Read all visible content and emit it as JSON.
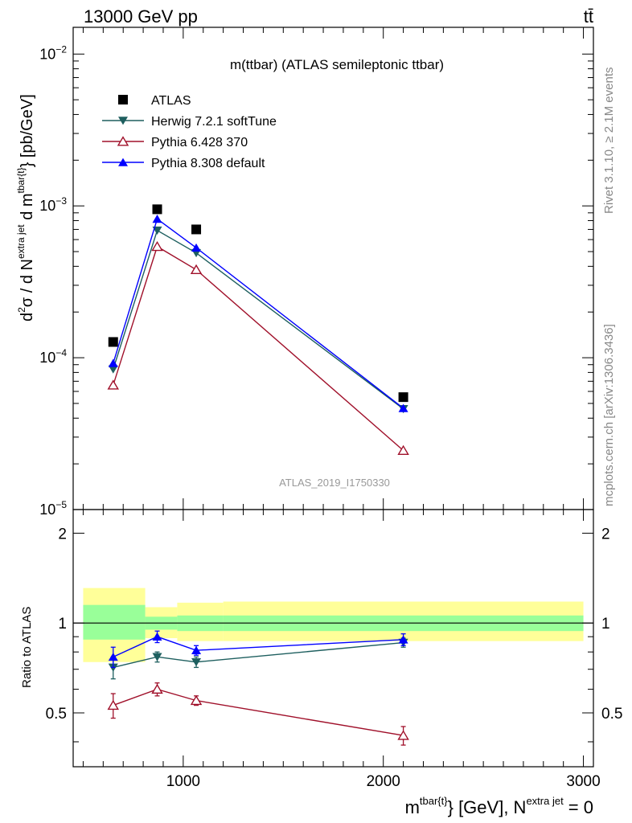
{
  "header": {
    "energy_label": "13000 GeV pp",
    "process_label": "tt̄"
  },
  "side_labels": {
    "rivet": "Rivet 3.1.10, ≥ 2.1M events",
    "mcplots": "mcplots.cern.ch [arXiv:1306.3436]"
  },
  "chart_data": [
    {
      "type": "scatter",
      "panel": "main",
      "title": "m(ttbar) (ATLAS semileptonic ttbar)",
      "watermark": "ATLAS_2019_I1750330",
      "ylabel": "d²σ / d N^{extra jet} d m^{tbar{t}} [pb/GeV]",
      "yscale": "log",
      "xlim": [
        450,
        3050
      ],
      "ylim": [
        1e-05,
        0.015
      ],
      "y_ticks": [
        {
          "value": 1e-05,
          "mantissa": "10",
          "exponent": "−5"
        },
        {
          "value": 0.0001,
          "mantissa": "10",
          "exponent": "−4"
        },
        {
          "value": 0.001,
          "mantissa": "10",
          "exponent": "−3"
        },
        {
          "value": 0.01,
          "mantissa": "10",
          "exponent": "−2"
        }
      ],
      "legend_position": "top-left",
      "series": [
        {
          "name": "ATLAS",
          "color": "#000000",
          "marker": "square",
          "line": false,
          "x": [
            650,
            870,
            1065,
            2100
          ],
          "y": [
            0.000127,
            0.00095,
            0.0007,
            5.5e-05
          ]
        },
        {
          "name": "Herwig 7.2.1 softTune",
          "color": "#1e5f5f",
          "marker": "triangle-down",
          "line": true,
          "x": [
            650,
            870,
            1065,
            2100
          ],
          "y": [
            8.4e-05,
            0.00069,
            0.00049,
            4.6e-05
          ]
        },
        {
          "name": "Pythia 6.428 370",
          "color": "#a0102a",
          "marker": "triangle-up-open",
          "line": true,
          "x": [
            650,
            870,
            1065,
            2100
          ],
          "y": [
            6.6e-05,
            0.00054,
            0.00038,
            2.45e-05
          ]
        },
        {
          "name": "Pythia 8.308 default",
          "color": "#0000ff",
          "marker": "triangle-up",
          "line": true,
          "x": [
            650,
            870,
            1065,
            2100
          ],
          "y": [
            9.2e-05,
            0.00082,
            0.00053,
            4.65e-05
          ]
        }
      ]
    },
    {
      "type": "scatter",
      "panel": "ratio",
      "ylabel": "Ratio to ATLAS",
      "xlabel_main": "m",
      "xlabel_sup": "tbar{t}",
      "xlabel_mid": "} [GeV], N",
      "xlabel_sup2": "extra jet",
      "xlabel_tail": " = 0",
      "xlim": [
        450,
        3050
      ],
      "ylim": [
        0.33,
        2.4
      ],
      "yscale": "log",
      "x_ticks": [
        1000,
        2000,
        3000
      ],
      "y_ticks": [
        0.5,
        1,
        2
      ],
      "reference": 1,
      "bands": [
        {
          "x0": 500,
          "x1": 810,
          "inner": [
            0.88,
            1.15
          ],
          "outer": [
            0.74,
            1.31
          ]
        },
        {
          "x0": 810,
          "x1": 970,
          "inner": [
            0.95,
            1.05
          ],
          "outer": [
            0.89,
            1.13
          ]
        },
        {
          "x0": 970,
          "x1": 1200,
          "inner": [
            0.94,
            1.06
          ],
          "outer": [
            0.87,
            1.17
          ]
        },
        {
          "x0": 1200,
          "x1": 3000,
          "inner": [
            0.94,
            1.06
          ],
          "outer": [
            0.87,
            1.18
          ]
        }
      ],
      "series": [
        {
          "name": "Herwig 7.2.1 softTune",
          "color": "#1e5f5f",
          "marker": "triangle-down",
          "x": [
            650,
            870,
            1065,
            2100
          ],
          "y": [
            0.71,
            0.77,
            0.74,
            0.86
          ],
          "err": [
            0.06,
            0.03,
            0.03,
            0.03
          ]
        },
        {
          "name": "Pythia 6.428 370",
          "color": "#a0102a",
          "marker": "triangle-up-open",
          "x": [
            650,
            870,
            1065,
            2100
          ],
          "y": [
            0.53,
            0.6,
            0.55,
            0.42
          ],
          "err": [
            0.05,
            0.03,
            0.02,
            0.03
          ]
        },
        {
          "name": "Pythia 8.308 default",
          "color": "#0000ff",
          "marker": "triangle-up",
          "x": [
            650,
            870,
            1065,
            2100
          ],
          "y": [
            0.77,
            0.9,
            0.81,
            0.88
          ],
          "err": [
            0.06,
            0.04,
            0.03,
            0.04
          ]
        }
      ],
      "band_colors": {
        "inner": "#99ff99",
        "outer": "#ffff99"
      }
    }
  ]
}
